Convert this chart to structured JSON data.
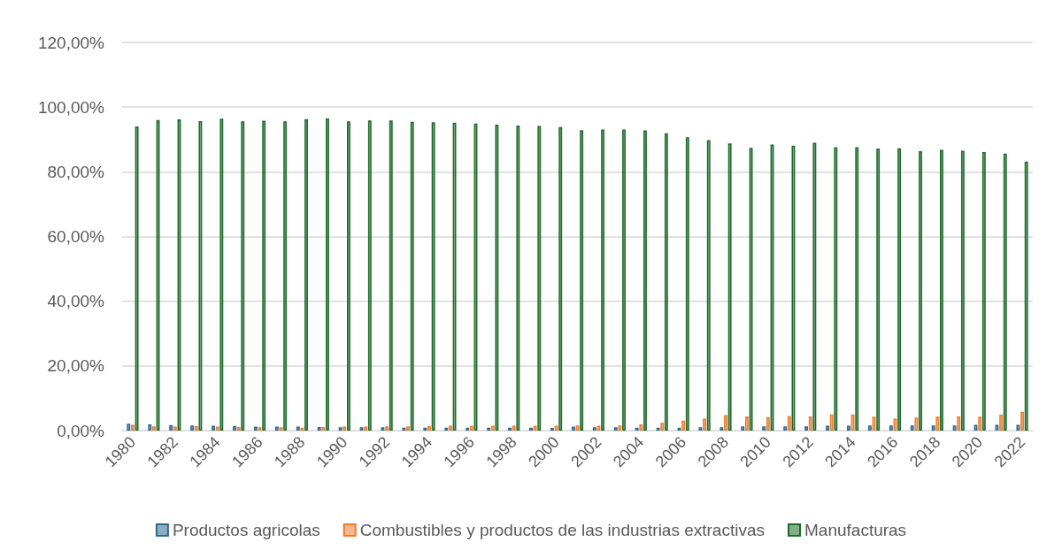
{
  "chart_data": {
    "type": "bar",
    "categories": [
      "1980",
      null,
      "1982",
      null,
      "1984",
      null,
      "1986",
      null,
      "1988",
      null,
      "1990",
      null,
      "1992",
      null,
      "1994",
      null,
      "1996",
      null,
      "1998",
      null,
      "2000",
      null,
      "2002",
      null,
      "2004",
      null,
      "2006",
      null,
      "2008",
      null,
      "2010",
      null,
      "2012",
      null,
      "2014",
      null,
      "2016",
      null,
      "2018",
      null,
      "2020",
      null,
      "2022"
    ],
    "series": [
      {
        "name": "Productos agricolas",
        "color": "#2f6a8f",
        "values": [
          2.1,
          1.9,
          1.7,
          1.6,
          1.5,
          1.4,
          1.2,
          1.2,
          1.2,
          1.1,
          1.0,
          1.0,
          1.0,
          0.9,
          0.9,
          0.9,
          0.9,
          0.9,
          0.9,
          0.9,
          0.8,
          1.2,
          1.0,
          1.0,
          0.9,
          0.9,
          0.9,
          1.0,
          1.0,
          1.3,
          1.3,
          1.3,
          1.3,
          1.5,
          1.5,
          1.6,
          1.6,
          1.6,
          1.6,
          1.6,
          1.8,
          1.8,
          1.8
        ]
      },
      {
        "name": "Combustibles y productos de las industrias extractivas",
        "color": "#ed7d31",
        "values": [
          1.8,
          1.3,
          1.2,
          1.4,
          1.2,
          1.1,
          1.0,
          1.0,
          0.9,
          1.1,
          1.2,
          1.2,
          1.3,
          1.3,
          1.4,
          1.5,
          1.5,
          1.5,
          1.5,
          1.5,
          1.5,
          1.6,
          1.5,
          1.6,
          1.9,
          2.4,
          3.1,
          3.7,
          4.8,
          4.4,
          4.2,
          4.5,
          4.4,
          5.0,
          5.0,
          4.3,
          3.7,
          4.0,
          4.3,
          4.4,
          4.3,
          4.9,
          5.8
        ]
      },
      {
        "name": "Manufacturas",
        "color": "#1e6b2a",
        "values": [
          94.0,
          96.0,
          96.2,
          95.7,
          96.4,
          95.6,
          95.8,
          95.6,
          96.3,
          96.5,
          95.6,
          95.9,
          95.9,
          95.5,
          95.3,
          95.2,
          94.9,
          94.6,
          94.3,
          94.2,
          93.8,
          92.9,
          93.1,
          93.1,
          92.8,
          91.9,
          90.7,
          89.8,
          88.8,
          87.4,
          88.4,
          88.1,
          89.0,
          87.6,
          87.6,
          87.2,
          87.3,
          86.4,
          86.8,
          86.5,
          86.1,
          85.6,
          83.2
        ]
      }
    ],
    "ylim": [
      0,
      120
    ],
    "yticks": [
      {
        "value": 0,
        "label": "0,00%"
      },
      {
        "value": 20,
        "label": "20,00%"
      },
      {
        "value": 40,
        "label": "40,00%"
      },
      {
        "value": 60,
        "label": "60,00%"
      },
      {
        "value": 80,
        "label": "80,00%"
      },
      {
        "value": 100,
        "label": "100,00%"
      },
      {
        "value": 120,
        "label": "120,00%"
      }
    ],
    "grid": "y",
    "legend": "bottom"
  }
}
